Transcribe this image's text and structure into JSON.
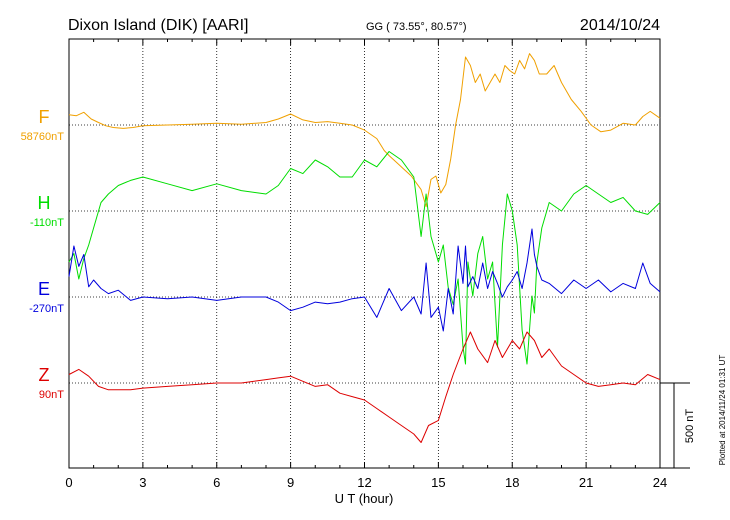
{
  "header": {
    "station": "Dixon Island (DIK)  [AARI]",
    "coords": "GG ( 73.55°,  80.57°)",
    "date": "2014/10/24"
  },
  "footer": {
    "plotted": "Plotted at 2014/11/24 01:31  UT"
  },
  "chart_data": {
    "type": "line",
    "xlabel": "U T (hour)",
    "xlim": [
      0,
      24
    ],
    "xticks": [
      0,
      3,
      6,
      9,
      12,
      15,
      18,
      21,
      24
    ],
    "scale_bar": "500 nT",
    "grid": true,
    "series": [
      {
        "name": "F",
        "baseline_label": "58760nT",
        "color": "#f0a000",
        "offset_nT": 0,
        "x": [
          0,
          0.3,
          0.6,
          0.9,
          1.2,
          1.5,
          1.8,
          2.2,
          2.6,
          3,
          4,
          5,
          6,
          7,
          8,
          8.5,
          9,
          9.5,
          10,
          10.5,
          11,
          11.5,
          12,
          12.5,
          12.8,
          13,
          13.3,
          13.6,
          13.9,
          14.1,
          14.3,
          14.5,
          14.7,
          14.9,
          15.1,
          15.3,
          15.5,
          15.7,
          15.9,
          16.1,
          16.3,
          16.5,
          16.7,
          16.9,
          17.1,
          17.3,
          17.5,
          17.7,
          17.9,
          18.1,
          18.3,
          18.5,
          18.7,
          18.9,
          19.1,
          19.4,
          19.7,
          20,
          20.4,
          20.8,
          21.2,
          21.6,
          22,
          22.5,
          23,
          23.3,
          23.6,
          24
        ],
        "y": [
          60,
          55,
          75,
          35,
          15,
          -5,
          -15,
          -20,
          -15,
          -5,
          0,
          5,
          10,
          5,
          15,
          35,
          65,
          30,
          15,
          20,
          10,
          0,
          -30,
          -80,
          -150,
          -180,
          -220,
          -260,
          -300,
          -340,
          -380,
          -480,
          -320,
          -300,
          -400,
          -350,
          -200,
          0,
          150,
          400,
          350,
          250,
          300,
          200,
          250,
          300,
          250,
          350,
          320,
          300,
          380,
          330,
          420,
          380,
          300,
          300,
          350,
          250,
          150,
          80,
          0,
          -40,
          -30,
          10,
          0,
          50,
          80,
          40
        ]
      },
      {
        "name": "H",
        "baseline_label": "-110nT",
        "color": "#00dd00",
        "offset_nT": 0,
        "x": [
          0,
          0.2,
          0.4,
          0.6,
          0.8,
          1,
          1.3,
          1.6,
          2,
          2.5,
          3,
          4,
          5,
          6,
          7,
          8,
          8.5,
          9,
          9.5,
          10,
          10.5,
          11,
          11.5,
          12,
          12.5,
          13,
          13.5,
          14,
          14.3,
          14.5,
          14.7,
          15,
          15.2,
          15.4,
          15.6,
          15.8,
          16,
          16.1,
          16.2,
          16.4,
          16.6,
          16.8,
          17,
          17.2,
          17.4,
          17.6,
          17.8,
          18,
          18.2,
          18.4,
          18.6,
          18.8,
          18.9,
          19,
          19.2,
          19.5,
          20,
          20.5,
          21,
          21.5,
          22,
          22.5,
          23,
          23.5,
          24
        ],
        "y": [
          -300,
          -250,
          -400,
          -280,
          -200,
          -100,
          50,
          100,
          150,
          180,
          200,
          160,
          120,
          160,
          120,
          100,
          150,
          250,
          220,
          300,
          260,
          200,
          200,
          300,
          260,
          350,
          300,
          200,
          -150,
          100,
          -150,
          -300,
          -200,
          -450,
          -550,
          -400,
          -800,
          -900,
          -300,
          -500,
          -250,
          -150,
          -400,
          -300,
          -800,
          -200,
          100,
          0,
          -200,
          -700,
          -900,
          -500,
          -600,
          -300,
          -100,
          50,
          0,
          100,
          150,
          100,
          50,
          80,
          0,
          -20,
          50
        ]
      },
      {
        "name": "E",
        "baseline_label": "-270nT",
        "color": "#0000dd",
        "offset_nT": 0,
        "x": [
          0,
          0.2,
          0.4,
          0.6,
          0.8,
          1,
          1.3,
          1.6,
          2,
          2.5,
          3,
          4,
          5,
          6,
          7,
          8,
          8.5,
          9,
          9.5,
          10,
          10.5,
          11,
          11.5,
          12,
          12.5,
          13,
          13.5,
          14,
          14.3,
          14.5,
          14.7,
          15,
          15.2,
          15.4,
          15.6,
          15.8,
          16,
          16.1,
          16.2,
          16.4,
          16.6,
          16.8,
          17,
          17.2,
          17.4,
          17.6,
          17.8,
          18,
          18.2,
          18.4,
          18.6,
          18.8,
          18.9,
          19,
          19.2,
          19.5,
          20,
          20.5,
          21,
          21.5,
          22,
          22.5,
          23,
          23.3,
          23.6,
          24
        ],
        "y": [
          120,
          300,
          180,
          250,
          60,
          100,
          50,
          20,
          40,
          -20,
          0,
          -10,
          0,
          -20,
          0,
          0,
          -30,
          -80,
          -60,
          -30,
          -40,
          -30,
          -10,
          0,
          -120,
          50,
          -80,
          0,
          -100,
          200,
          -120,
          -60,
          -200,
          50,
          -100,
          300,
          80,
          300,
          60,
          120,
          50,
          200,
          50,
          150,
          80,
          0,
          60,
          100,
          150,
          50,
          200,
          400,
          250,
          180,
          100,
          80,
          20,
          100,
          50,
          100,
          30,
          80,
          50,
          200,
          80,
          30
        ]
      },
      {
        "name": "Z",
        "baseline_label": "90nT",
        "color": "#dd0000",
        "offset_nT": 0,
        "x": [
          0,
          0.4,
          0.8,
          1.2,
          1.6,
          2,
          2.5,
          3,
          4,
          5,
          6,
          7,
          8,
          8.5,
          9,
          9.5,
          10,
          10.5,
          11,
          11.5,
          12,
          12.5,
          13,
          13.5,
          14,
          14.3,
          14.6,
          15,
          15.3,
          15.6,
          16,
          16.3,
          16.6,
          17,
          17.3,
          17.6,
          18,
          18.3,
          18.6,
          18.9,
          19.2,
          19.5,
          20,
          20.5,
          21,
          21.5,
          22,
          22.5,
          23,
          23.5,
          24
        ],
        "y": [
          50,
          80,
          40,
          -20,
          -40,
          -40,
          -40,
          -30,
          -20,
          -10,
          0,
          0,
          20,
          30,
          40,
          10,
          -20,
          -10,
          -60,
          -80,
          -100,
          -150,
          -200,
          -250,
          -300,
          -350,
          -250,
          -220,
          -80,
          50,
          200,
          300,
          200,
          120,
          250,
          150,
          250,
          200,
          300,
          250,
          150,
          200,
          100,
          50,
          0,
          -20,
          -10,
          0,
          -10,
          50,
          20
        ]
      }
    ]
  }
}
